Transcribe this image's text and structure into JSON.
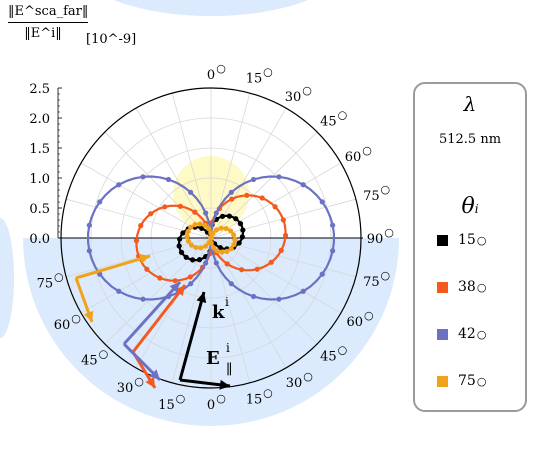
{
  "chart_data": {
    "type": "polar-line",
    "y_label_numerator": "‖E^sca_far‖",
    "y_label_denominator": "‖E^i‖",
    "y_unit": "[10^-9]",
    "r_ticks": [
      "0.0",
      "0.5",
      "1.0",
      "1.5",
      "2.0",
      "2.5"
    ],
    "r_range": [
      0,
      2.5
    ],
    "angle_ticks_top_right": [
      "0",
      "15",
      "30",
      "45",
      "60",
      "75",
      "90"
    ],
    "angle_ticks_bottom_right": [
      "75",
      "60",
      "45",
      "30",
      "15",
      "0"
    ],
    "angle_ticks_bottom_left": [
      "75",
      "60",
      "45",
      "30",
      "15"
    ],
    "grid": true,
    "legend": {
      "placement": "right",
      "wavelength_symbol": "λ",
      "wavelength_value": "512.5 nm",
      "angle_symbol": "θ",
      "angle_subscript": "i",
      "entries": [
        {
          "label": "15",
          "color": "#000000"
        },
        {
          "label": "38",
          "color": "#f4591e"
        },
        {
          "label": "42",
          "color": "#6b72c4"
        },
        {
          "label": "75",
          "color": "#f0a31a"
        }
      ]
    },
    "annotations": {
      "k_label": "k",
      "k_superscript": "i",
      "e_label": "E",
      "e_superscript": "i",
      "e_subscript": "∥"
    },
    "series": [
      {
        "name": "15",
        "color": "#000000",
        "shape": "figure-eight",
        "amplitude": 0.55,
        "tilt": -20
      },
      {
        "name": "38",
        "color": "#f4591e",
        "shape": "figure-eight",
        "amplitude": 1.25,
        "tilt": -8
      },
      {
        "name": "42",
        "color": "#6b72c4",
        "shape": "figure-eight",
        "amplitude": 2.05,
        "tilt": 0
      },
      {
        "name": "75",
        "color": "#f0a31a",
        "shape": "figure-eight",
        "amplitude": 0.4,
        "tilt": 10
      }
    ]
  }
}
